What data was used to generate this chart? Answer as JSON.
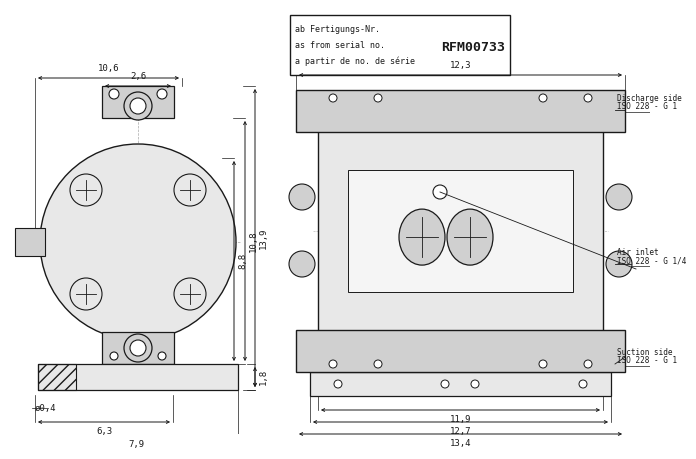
{
  "bg_color": "#ffffff",
  "line_color": "#1a1a1a",
  "dim_color": "#1a1a1a",
  "gray_light": "#e8e8e8",
  "gray_mid": "#d0d0d0",
  "gray_dark": "#b0b0b0",
  "title_box": {
    "lines": [
      "ab Fertigungs-Nr.",
      "as from serial no.",
      "a partir de no. de série"
    ],
    "serial": "RFM00733"
  },
  "annotations": [
    {
      "label1": "Discharge side",
      "label2": "ISO 228 - G 1"
    },
    {
      "label1": "Air inlet",
      "label2": "ISO 228 - G 1⁄4"
    },
    {
      "label1": "Suction side",
      "label2": "ISO 228 - G 1"
    }
  ]
}
